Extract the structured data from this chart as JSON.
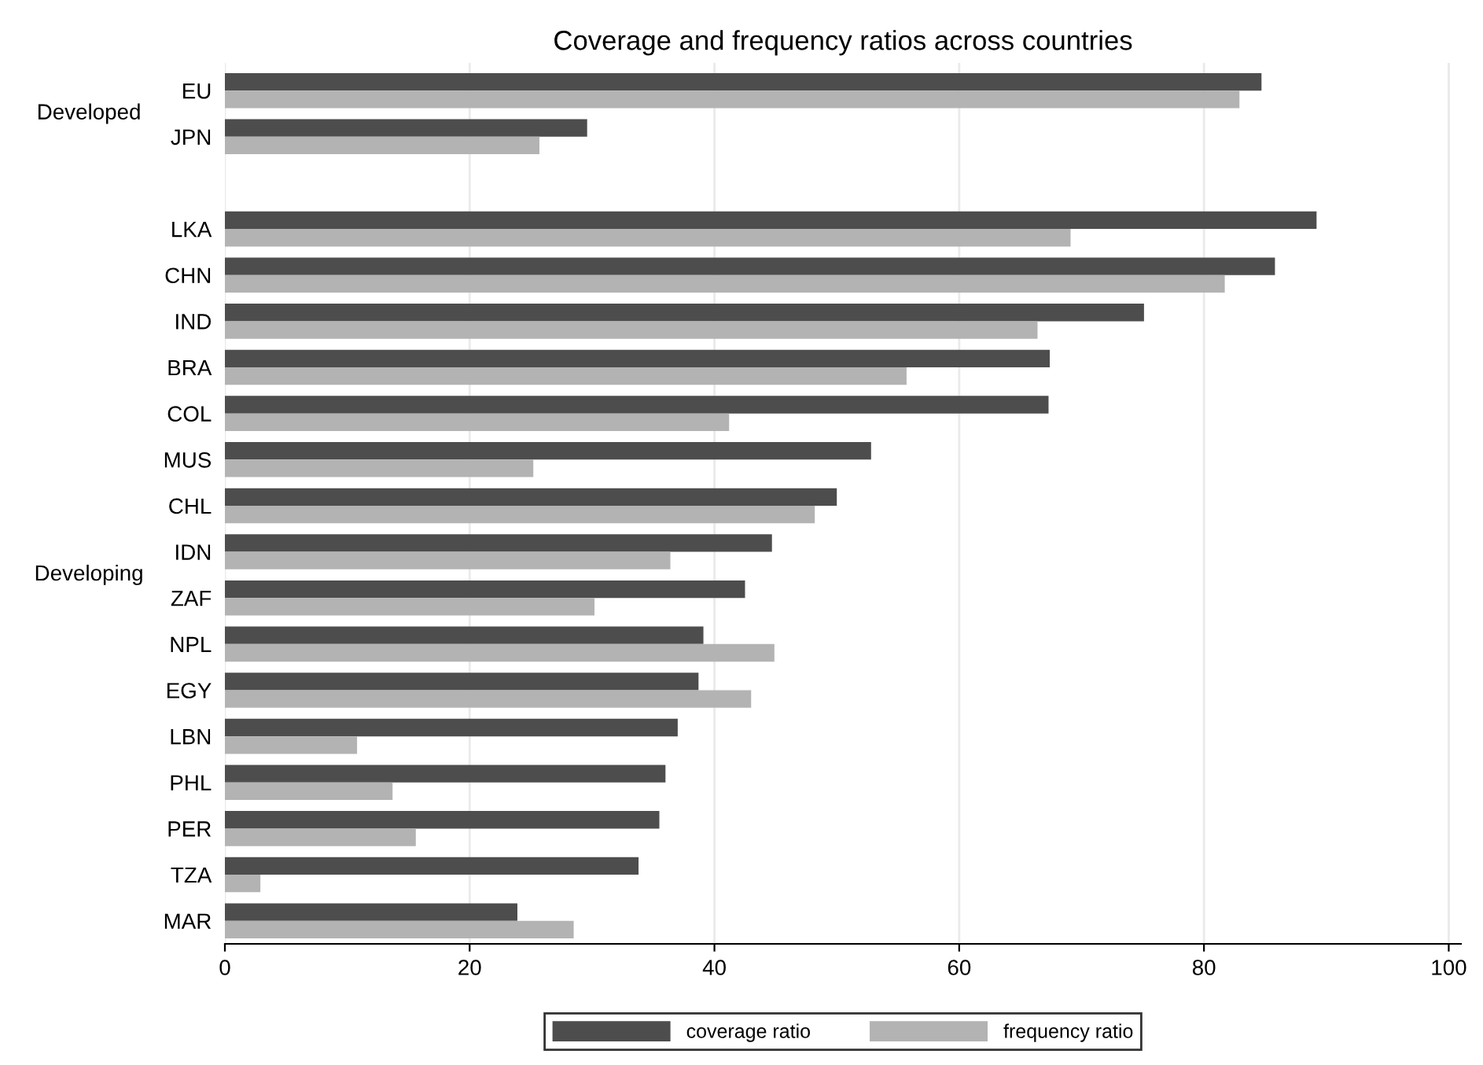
{
  "chart_data": {
    "type": "bar",
    "orientation": "horizontal",
    "title": "Coverage and frequency ratios across countries",
    "categories": [
      "EU",
      "JPN",
      null,
      "LKA",
      "CHN",
      "IND",
      "BRA",
      "COL",
      "MUS",
      "CHL",
      "IDN",
      "ZAF",
      "NPL",
      "EGY",
      "LBN",
      "PHL",
      "PER",
      "TZA",
      "MAR"
    ],
    "series": [
      {
        "name": "coverage ratio",
        "color": "#4d4d4d",
        "values": [
          84.7,
          29.6,
          null,
          89.2,
          85.8,
          75.1,
          67.4,
          67.3,
          52.8,
          50.0,
          44.7,
          42.5,
          39.1,
          38.7,
          37.0,
          36.0,
          35.5,
          33.8,
          23.9
        ]
      },
      {
        "name": "frequency ratio",
        "color": "#b3b3b3",
        "values": [
          82.9,
          25.7,
          null,
          69.1,
          81.7,
          66.4,
          55.7,
          41.2,
          25.2,
          48.2,
          36.4,
          30.2,
          44.9,
          43.0,
          10.8,
          13.7,
          15.6,
          2.9,
          28.5
        ]
      }
    ],
    "annotations": [
      "Developed",
      "Developing"
    ],
    "xlim": [
      0,
      101
    ],
    "xticks": [
      0,
      20,
      40,
      60,
      80,
      100
    ],
    "grid": "x",
    "legend": "bottom"
  }
}
